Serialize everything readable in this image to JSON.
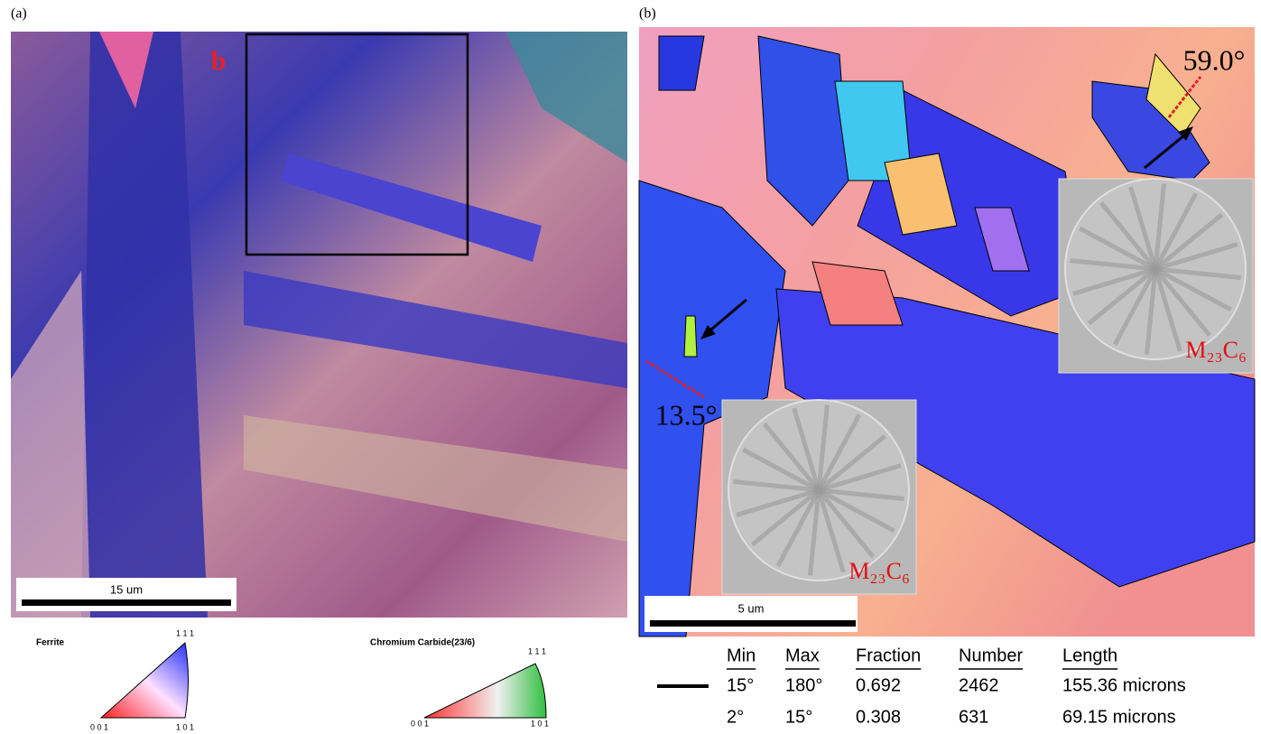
{
  "panels": [
    {
      "label": "(a)",
      "marker": "b",
      "scale_bar": "15 um",
      "legends": [
        {
          "title": "Ferrite",
          "corners": [
            "1 1 1",
            "0 0 1",
            "1 0 1"
          ]
        },
        {
          "title": "Chromium Carbide(23/6)",
          "corners": [
            "1 1 1",
            "0 0 1",
            "1 0 1"
          ]
        }
      ]
    },
    {
      "label": "(b)",
      "angles": [
        "59.0°",
        "13.5°"
      ],
      "patterns": [
        "M₂₃C₆",
        "M₂₃C₆"
      ],
      "scale_bar": "5 um",
      "table": {
        "headers": [
          "Min",
          "Max",
          "Fraction",
          "Number",
          "Length"
        ],
        "rows": [
          [
            "15°",
            "180°",
            "0.692",
            "2462",
            "155.36 microns"
          ],
          [
            "2°",
            "15°",
            "0.308",
            "631",
            "69.15 microns"
          ]
        ]
      }
    }
  ]
}
